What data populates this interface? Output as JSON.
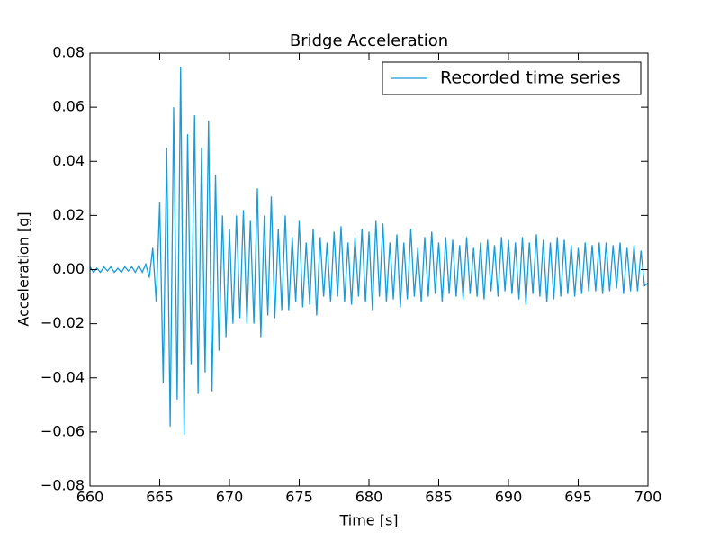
{
  "chart_data": {
    "type": "line",
    "title": "Bridge Acceleration",
    "xlabel": "Time [s]",
    "ylabel": "Acceleration [g]",
    "x": [
      660,
      660.25,
      660.5,
      660.75,
      661,
      661.25,
      661.5,
      661.75,
      662,
      662.25,
      662.5,
      662.75,
      663,
      663.25,
      663.5,
      663.75,
      664,
      664.25,
      664.5,
      664.75,
      665,
      665.25,
      665.5,
      665.75,
      666,
      666.25,
      666.5,
      666.75,
      667,
      667.25,
      667.5,
      667.75,
      668,
      668.25,
      668.5,
      668.75,
      669,
      669.25,
      669.5,
      669.75,
      670,
      670.25,
      670.5,
      670.75,
      671,
      671.25,
      671.5,
      671.75,
      672,
      672.25,
      672.5,
      672.75,
      673,
      673.25,
      673.5,
      673.75,
      674,
      674.25,
      674.5,
      674.75,
      675,
      675.25,
      675.5,
      675.75,
      676,
      676.25,
      676.5,
      676.75,
      677,
      677.25,
      677.5,
      677.75,
      678,
      678.25,
      678.5,
      678.75,
      679,
      679.25,
      679.5,
      679.75,
      680,
      680.25,
      680.5,
      680.75,
      681,
      681.25,
      681.5,
      681.75,
      682,
      682.25,
      682.5,
      682.75,
      683,
      683.25,
      683.5,
      683.75,
      684,
      684.25,
      684.5,
      684.75,
      685,
      685.25,
      685.5,
      685.75,
      686,
      686.25,
      686.5,
      686.75,
      687,
      687.25,
      687.5,
      687.75,
      688,
      688.25,
      688.5,
      688.75,
      689,
      689.25,
      689.5,
      689.75,
      690,
      690.25,
      690.5,
      690.75,
      691,
      691.25,
      691.5,
      691.75,
      692,
      692.25,
      692.5,
      692.75,
      693,
      693.25,
      693.5,
      693.75,
      694,
      694.25,
      694.5,
      694.75,
      695,
      695.25,
      695.5,
      695.75,
      696,
      696.25,
      696.5,
      696.75,
      697,
      697.25,
      697.5,
      697.75,
      698,
      698.25,
      698.5,
      698.75,
      699,
      699.25,
      699.5,
      699.75,
      700
    ],
    "series": [
      {
        "name": "Recorded time series",
        "color": "#1a9bd7",
        "values": [
          0.001,
          -0.001,
          0.0005,
          -0.001,
          0.001,
          -0.0005,
          0.001,
          -0.001,
          0.0005,
          -0.001,
          0.001,
          -0.0005,
          0.001,
          -0.001,
          0.0015,
          -0.001,
          0.002,
          -0.003,
          0.008,
          -0.012,
          0.025,
          -0.042,
          0.045,
          -0.058,
          0.06,
          -0.048,
          0.075,
          -0.061,
          0.05,
          -0.035,
          0.057,
          -0.046,
          0.045,
          -0.038,
          0.055,
          -0.045,
          0.035,
          -0.03,
          0.02,
          -0.025,
          0.015,
          -0.02,
          0.02,
          -0.018,
          0.022,
          -0.02,
          0.018,
          -0.02,
          0.03,
          -0.025,
          0.02,
          -0.017,
          0.027,
          -0.018,
          0.015,
          -0.015,
          0.02,
          -0.015,
          0.012,
          -0.012,
          0.018,
          -0.014,
          0.01,
          -0.013,
          0.015,
          -0.017,
          0.012,
          -0.01,
          0.01,
          -0.012,
          0.014,
          -0.01,
          0.016,
          -0.012,
          0.01,
          -0.013,
          0.012,
          -0.01,
          0.015,
          -0.012,
          0.014,
          -0.015,
          0.018,
          -0.01,
          0.017,
          -0.012,
          0.01,
          -0.011,
          0.013,
          -0.014,
          0.01,
          -0.011,
          0.015,
          -0.01,
          0.008,
          -0.012,
          0.012,
          -0.01,
          0.014,
          -0.009,
          0.01,
          -0.012,
          0.012,
          -0.009,
          0.011,
          -0.01,
          0.009,
          -0.011,
          0.012,
          -0.009,
          0.008,
          -0.01,
          0.01,
          -0.011,
          0.011,
          -0.008,
          0.009,
          -0.01,
          0.012,
          -0.008,
          0.011,
          -0.009,
          0.01,
          -0.011,
          0.012,
          -0.013,
          0.01,
          -0.009,
          0.013,
          -0.01,
          0.011,
          -0.012,
          0.01,
          -0.011,
          0.012,
          -0.01,
          0.011,
          -0.009,
          0.009,
          -0.01,
          0.008,
          -0.009,
          0.01,
          -0.008,
          0.009,
          -0.008,
          0.01,
          -0.009,
          0.01,
          -0.008,
          0.009,
          -0.007,
          0.01,
          -0.009,
          0.008,
          -0.008,
          0.009,
          -0.008,
          0.007,
          -0.006,
          -0.005
        ]
      }
    ],
    "xlim": [
      660,
      700
    ],
    "xticks": [
      660,
      665,
      670,
      675,
      680,
      685,
      690,
      695,
      700
    ],
    "ylim": [
      -0.08,
      0.08
    ],
    "yticks": [
      {
        "value": -0.08,
        "label": "−0.08"
      },
      {
        "value": -0.06,
        "label": "−0.06"
      },
      {
        "value": -0.04,
        "label": "−0.04"
      },
      {
        "value": -0.02,
        "label": "−0.02"
      },
      {
        "value": 0,
        "label": "0.00"
      },
      0.02,
      0.04,
      0.06,
      0.08
    ],
    "legend": "upper right"
  }
}
